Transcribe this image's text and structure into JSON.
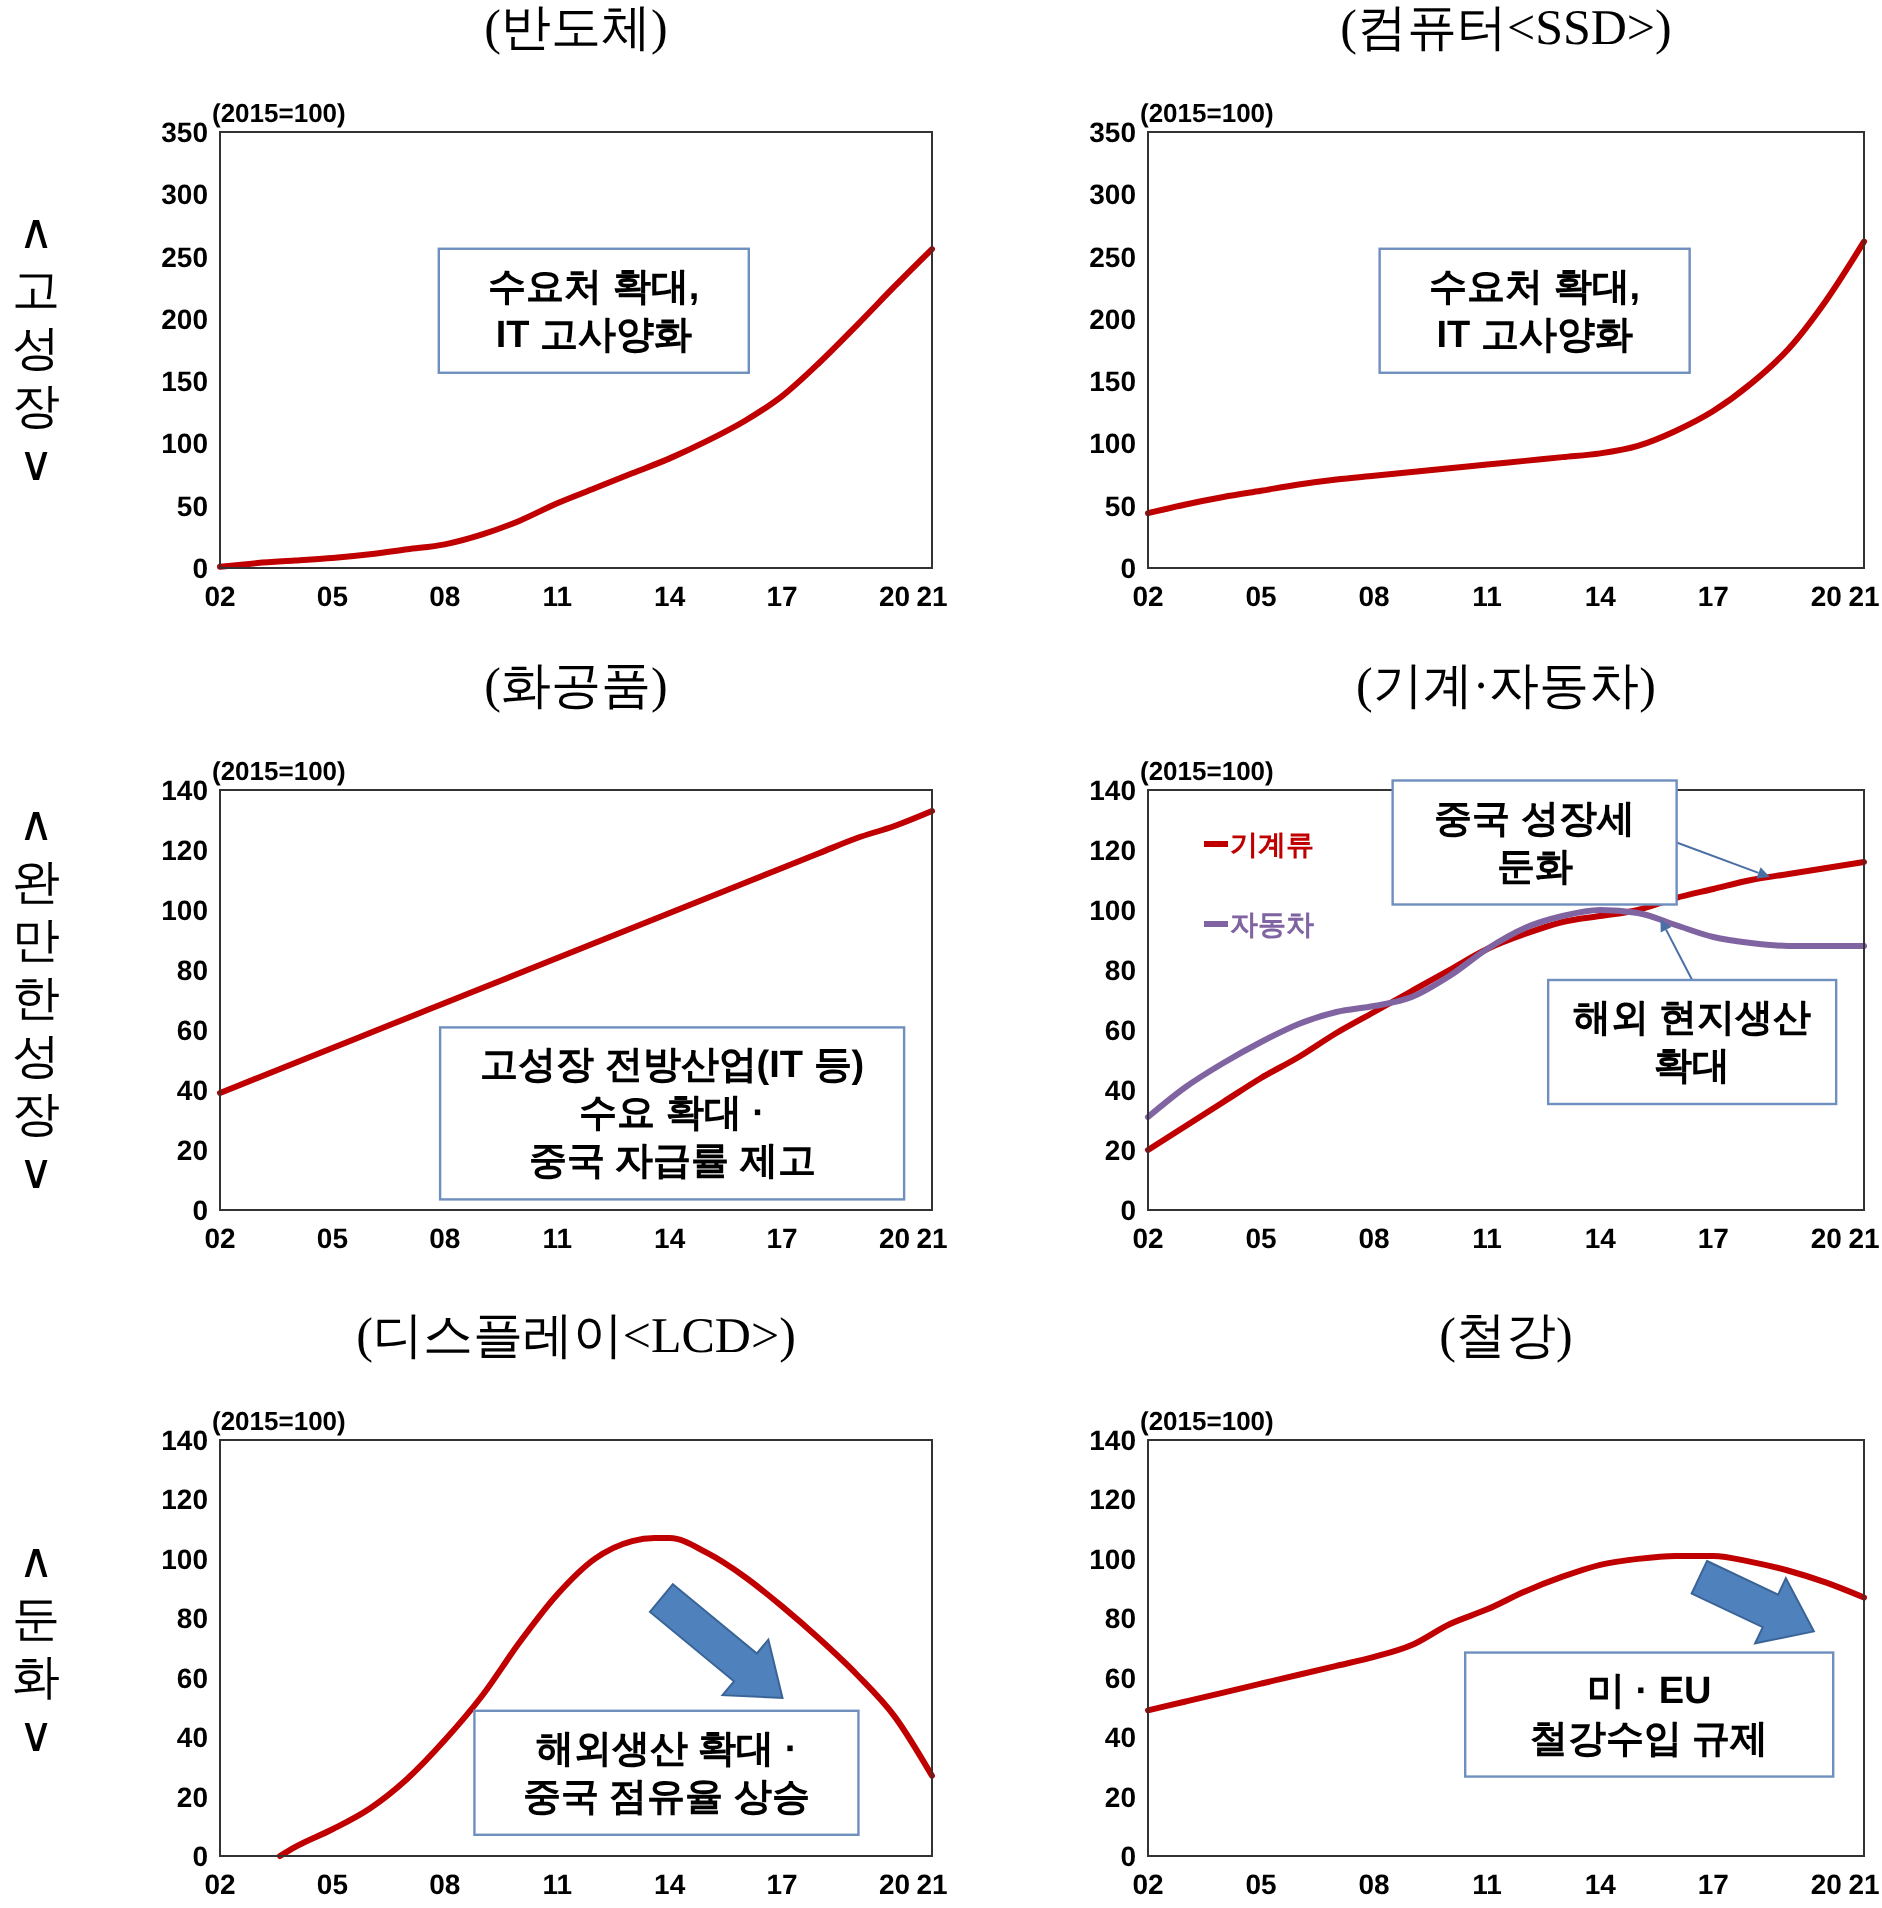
{
  "chart_data": [
    {
      "type": "line",
      "title": "(반도체)",
      "ylabel": "(2015=100)",
      "x": [
        2002,
        2003,
        2004,
        2005,
        2006,
        2007,
        2008,
        2009,
        2010,
        2011,
        2012,
        2013,
        2014,
        2015,
        2016,
        2017,
        2018,
        2019,
        2020,
        2021
      ],
      "series": [
        {
          "color": "#c00000",
          "values": [
            1,
            4,
            6,
            8,
            11,
            15,
            19,
            27,
            38,
            52,
            64,
            76,
            88,
            102,
            118,
            138,
            165,
            195,
            226,
            256
          ]
        }
      ],
      "xlim": [
        2002,
        2021
      ],
      "xticks": [
        {
          "value": 2002,
          "label": "02"
        },
        {
          "value": 2005,
          "label": "05"
        },
        {
          "value": 2008,
          "label": "08"
        },
        {
          "value": 2011,
          "label": "11"
        },
        {
          "value": 2014,
          "label": "14"
        },
        {
          "value": 2017,
          "label": "17"
        },
        {
          "value": 2020,
          "label": "20"
        },
        {
          "value": 2021,
          "label": "21"
        }
      ],
      "ylim": [
        0,
        350
      ],
      "yticks": [
        0,
        50,
        100,
        150,
        200,
        250,
        300,
        350
      ],
      "annotations": [
        "수요처 확대,\nIT 고사양화"
      ]
    },
    {
      "type": "line",
      "title": "(컴퓨터<SSD>)",
      "ylabel": "(2015=100)",
      "x": [
        2002,
        2003,
        2004,
        2005,
        2006,
        2007,
        2008,
        2009,
        2010,
        2011,
        2012,
        2013,
        2014,
        2015,
        2016,
        2017,
        2018,
        2019,
        2020,
        2021
      ],
      "series": [
        {
          "color": "#c00000",
          "values": [
            44,
            51,
            57,
            62,
            67,
            71,
            74,
            77,
            80,
            83,
            86,
            89,
            92,
            98,
            110,
            126,
            148,
            176,
            215,
            262
          ]
        }
      ],
      "xlim": [
        2002,
        2021
      ],
      "xticks": [
        {
          "value": 2002,
          "label": "02"
        },
        {
          "value": 2005,
          "label": "05"
        },
        {
          "value": 2008,
          "label": "08"
        },
        {
          "value": 2011,
          "label": "11"
        },
        {
          "value": 2014,
          "label": "14"
        },
        {
          "value": 2017,
          "label": "17"
        },
        {
          "value": 2020,
          "label": "20"
        },
        {
          "value": 2021,
          "label": "21"
        }
      ],
      "ylim": [
        0,
        350
      ],
      "yticks": [
        0,
        50,
        100,
        150,
        200,
        250,
        300,
        350
      ],
      "annotations": [
        "수요처 확대,\nIT 고사양화"
      ]
    },
    {
      "type": "line",
      "title": "(화공품)",
      "ylabel": "(2015=100)",
      "x": [
        2002,
        2003,
        2004,
        2005,
        2006,
        2007,
        2008,
        2009,
        2010,
        2011,
        2012,
        2013,
        2014,
        2015,
        2016,
        2017,
        2018,
        2019,
        2020,
        2021
      ],
      "series": [
        {
          "color": "#c00000",
          "values": [
            39,
            44,
            49,
            54,
            59,
            64,
            69,
            74,
            79,
            84,
            89,
            94,
            99,
            104,
            109,
            114,
            119,
            124,
            128,
            133
          ]
        }
      ],
      "xlim": [
        2002,
        2021
      ],
      "xticks": [
        {
          "value": 2002,
          "label": "02"
        },
        {
          "value": 2005,
          "label": "05"
        },
        {
          "value": 2008,
          "label": "08"
        },
        {
          "value": 2011,
          "label": "11"
        },
        {
          "value": 2014,
          "label": "14"
        },
        {
          "value": 2017,
          "label": "17"
        },
        {
          "value": 2020,
          "label": "20"
        },
        {
          "value": 2021,
          "label": "21"
        }
      ],
      "ylim": [
        0,
        140
      ],
      "yticks": [
        0,
        20,
        40,
        60,
        80,
        100,
        120,
        140
      ],
      "annotations": [
        "고성장 전방산업(IT 등)\n수요 확대 ·\n중국 자급률 제고"
      ]
    },
    {
      "type": "line",
      "title": "(기계·자동차)",
      "ylabel": "(2015=100)",
      "x": [
        2002,
        2003,
        2004,
        2005,
        2006,
        2007,
        2008,
        2009,
        2010,
        2011,
        2012,
        2013,
        2014,
        2015,
        2016,
        2017,
        2018,
        2019,
        2020,
        2021
      ],
      "series": [
        {
          "name": "기계류",
          "color": "#c00000",
          "values": [
            20,
            28,
            36,
            44,
            51,
            59,
            66,
            73,
            80,
            87,
            92,
            96,
            98,
            100,
            104,
            107,
            110,
            112,
            114,
            116
          ]
        },
        {
          "name": "자동차",
          "color": "#8064a2",
          "values": [
            31,
            41,
            49,
            56,
            62,
            66,
            68,
            71,
            78,
            87,
            94,
            98,
            100,
            99,
            95,
            91,
            89,
            88,
            88,
            88
          ]
        }
      ],
      "legend": "top left",
      "xlim": [
        2002,
        2021
      ],
      "xticks": [
        {
          "value": 2002,
          "label": "02"
        },
        {
          "value": 2005,
          "label": "05"
        },
        {
          "value": 2008,
          "label": "08"
        },
        {
          "value": 2011,
          "label": "11"
        },
        {
          "value": 2014,
          "label": "14"
        },
        {
          "value": 2017,
          "label": "17"
        },
        {
          "value": 2020,
          "label": "20"
        },
        {
          "value": 2021,
          "label": "21"
        }
      ],
      "ylim": [
        0,
        140
      ],
      "yticks": [
        0,
        20,
        40,
        60,
        80,
        100,
        120,
        140
      ],
      "annotations": [
        {
          "text": "중국 성장세\n둔화",
          "x": 2018.5,
          "y": 111
        },
        {
          "text": "해외 현지생산\n확대",
          "x": 2015.6,
          "y": 97
        }
      ]
    },
    {
      "type": "line",
      "title": "(디스플레이<LCD>)",
      "ylabel": "(2015=100)",
      "series": [
        {
          "color": "#c00000",
          "x": [
            2003.6,
            2004,
            2005,
            2006,
            2007,
            2008,
            2009,
            2010,
            2011,
            2012,
            2013,
            2013.6,
            2014,
            2015,
            2016,
            2017,
            2018,
            2019,
            2020,
            2021
          ],
          "values": [
            0,
            3,
            9,
            16,
            26,
            39,
            54,
            72,
            88,
            100,
            106,
            107,
            107,
            102,
            94,
            84,
            73,
            61,
            47,
            27
          ]
        }
      ],
      "xlim": [
        2002,
        2021
      ],
      "xticks": [
        {
          "value": 2002,
          "label": "02"
        },
        {
          "value": 2005,
          "label": "05"
        },
        {
          "value": 2008,
          "label": "08"
        },
        {
          "value": 2011,
          "label": "11"
        },
        {
          "value": 2014,
          "label": "14"
        },
        {
          "value": 2017,
          "label": "17"
        },
        {
          "value": 2020,
          "label": "20"
        },
        {
          "value": 2021,
          "label": "21"
        }
      ],
      "ylim": [
        0,
        140
      ],
      "yticks": [
        0,
        20,
        40,
        60,
        80,
        100,
        120,
        140
      ],
      "annotations": [
        "해외생산 확대 ·\n중국 점유율 상승"
      ]
    },
    {
      "type": "line",
      "title": "(철강)",
      "ylabel": "(2015=100)",
      "x": [
        2002,
        2003,
        2004,
        2005,
        2006,
        2007,
        2008,
        2009,
        2010,
        2011,
        2012,
        2013,
        2014,
        2015,
        2016,
        2017,
        2018,
        2019,
        2020,
        2021
      ],
      "series": [
        {
          "color": "#c00000",
          "values": [
            49,
            52,
            55,
            58,
            61,
            64,
            67,
            71,
            78,
            83,
            89,
            94,
            98,
            100,
            101,
            101,
            99,
            96,
            92,
            87
          ]
        }
      ],
      "xlim": [
        2002,
        2021
      ],
      "xticks": [
        {
          "value": 2002,
          "label": "02"
        },
        {
          "value": 2005,
          "label": "05"
        },
        {
          "value": 2008,
          "label": "08"
        },
        {
          "value": 2011,
          "label": "11"
        },
        {
          "value": 2014,
          "label": "14"
        },
        {
          "value": 2017,
          "label": "17"
        },
        {
          "value": 2020,
          "label": "20"
        },
        {
          "value": 2021,
          "label": "21"
        }
      ],
      "ylim": [
        0,
        140
      ],
      "yticks": [
        0,
        20,
        40,
        60,
        80,
        100,
        120,
        140
      ],
      "annotations": [
        "미 · EU\n철강수입 규제"
      ]
    },
    {
      "type": "other",
      "annotations": [
        "∧\n고\n성\n장\n∨",
        "∧\n완\n만\n한\n성\n장\n∨",
        "∧\n둔\n화\n∨"
      ]
    }
  ]
}
